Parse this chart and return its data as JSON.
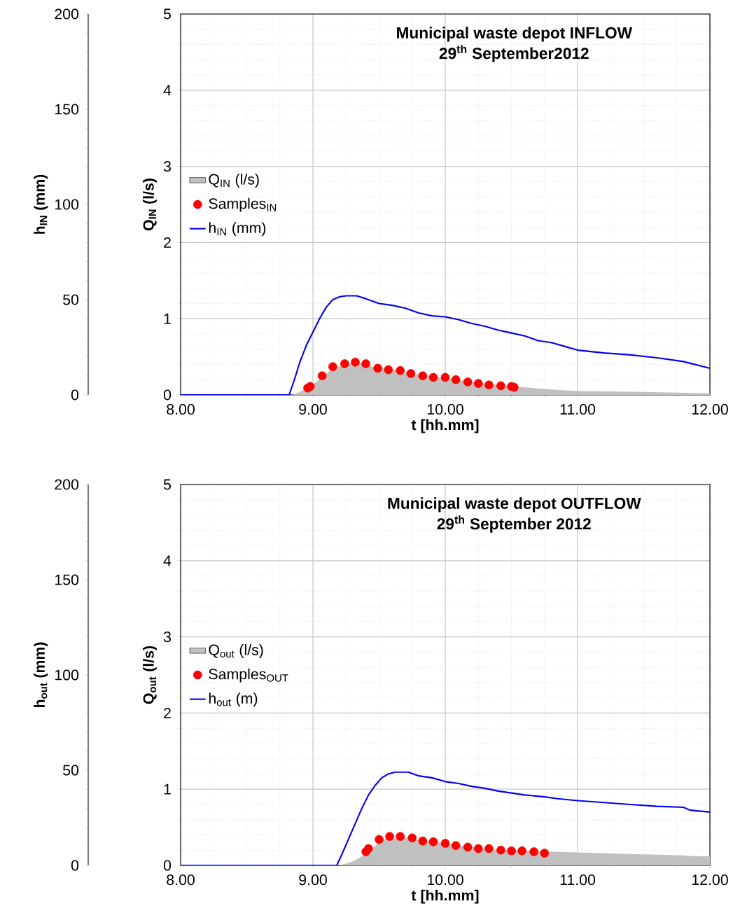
{
  "chart_data": [
    {
      "type": "area",
      "title": "Municipal waste depot INFLOW",
      "subtitle": "29$^{th}$ September2012",
      "xlabel": "t [hh.mm]",
      "ylabel": "Q$_{IN}$ (l/s)",
      "y2label": "h$_{IN}$ (mm)",
      "xlim": [
        8,
        12
      ],
      "xticks": [
        {
          "value": 8,
          "label": "8.00"
        },
        {
          "value": 9,
          "label": "9.00"
        },
        {
          "value": 10,
          "label": "10.00"
        },
        {
          "value": 11,
          "label": "11.00"
        },
        {
          "value": 12,
          "label": "12.00"
        }
      ],
      "ylim": [
        0,
        5
      ],
      "yticks": [
        0,
        1,
        2,
        3,
        4,
        5
      ],
      "y2lim": [
        0,
        200
      ],
      "y2ticks": [
        0,
        50,
        100,
        150,
        200
      ],
      "grid": true,
      "legend": "left",
      "series": [
        {
          "name": "Q$_{IN}$ (l/s)",
          "color": "#c0c0c0",
          "x": [
            8.0,
            8.85,
            8.95,
            9.05,
            9.15,
            9.25,
            9.35,
            9.45,
            9.6,
            9.75,
            9.9,
            10.0,
            10.2,
            10.4,
            10.5,
            10.6,
            10.8,
            11.0,
            11.5,
            12.0
          ],
          "values": [
            0,
            0,
            0.08,
            0.2,
            0.35,
            0.4,
            0.42,
            0.37,
            0.33,
            0.28,
            0.24,
            0.22,
            0.17,
            0.13,
            0.11,
            0.1,
            0.07,
            0.05,
            0.04,
            0.02
          ]
        },
        {
          "name": "Samples$_{IN}$",
          "type": "scatter",
          "color": "#ff0000",
          "marker": "circle",
          "x": [
            8.96,
            8.98,
            9.07,
            9.15,
            9.24,
            9.32,
            9.4,
            9.49,
            9.57,
            9.66,
            9.74,
            9.83,
            9.91,
            10.0,
            10.08,
            10.17,
            10.25,
            10.33,
            10.42,
            10.5,
            10.52
          ],
          "values": [
            0.09,
            0.11,
            0.25,
            0.37,
            0.41,
            0.43,
            0.41,
            0.35,
            0.33,
            0.32,
            0.28,
            0.25,
            0.23,
            0.23,
            0.2,
            0.17,
            0.15,
            0.13,
            0.12,
            0.11,
            0.1
          ]
        },
        {
          "name": "h$_{IN}$ (mm)",
          "type": "line",
          "color": "#0000ff",
          "axis": "y2",
          "x": [
            8.0,
            8.82,
            8.86,
            8.9,
            8.95,
            9.0,
            9.05,
            9.1,
            9.15,
            9.2,
            9.25,
            9.33,
            9.4,
            9.5,
            9.6,
            9.7,
            9.8,
            9.9,
            10.0,
            10.1,
            10.2,
            10.3,
            10.4,
            10.5,
            10.6,
            10.7,
            10.8,
            10.9,
            11.0,
            11.2,
            11.4,
            11.6,
            11.8,
            12.0
          ],
          "values": [
            0,
            0,
            8,
            17,
            26,
            33,
            40,
            46,
            50,
            51.5,
            52,
            52,
            50.5,
            48,
            47,
            45.5,
            43,
            41.5,
            41,
            39.5,
            37.5,
            36,
            34,
            32.5,
            31,
            28.5,
            27.5,
            25.5,
            23.5,
            22,
            21,
            19.5,
            17.5,
            14
          ]
        }
      ]
    },
    {
      "type": "area",
      "title": "Municipal waste depot OUTFLOW",
      "subtitle": "29$^{th}$ September 2012",
      "xlabel": "t [hh.mm]",
      "ylabel": "Q$_{out}$ (l/s)",
      "y2label": "h$_{out}$ (mm)",
      "xlim": [
        8,
        12
      ],
      "xticks": [
        {
          "value": 8,
          "label": "8.00"
        },
        {
          "value": 9,
          "label": "9.00"
        },
        {
          "value": 10,
          "label": "10.00"
        },
        {
          "value": 11,
          "label": "11.00"
        },
        {
          "value": 12,
          "label": "12.00"
        }
      ],
      "ylim": [
        0,
        5
      ],
      "yticks": [
        0,
        1,
        2,
        3,
        4,
        5
      ],
      "y2lim": [
        0,
        200
      ],
      "y2ticks": [
        0,
        50,
        100,
        150,
        200
      ],
      "grid": true,
      "legend": "left",
      "series": [
        {
          "name": "Q$_{out}$ (l/s)",
          "color": "#c0c0c0",
          "x": [
            8.0,
            9.2,
            9.3,
            9.4,
            9.5,
            9.55,
            9.7,
            9.8,
            9.9,
            10.0,
            10.2,
            10.4,
            10.6,
            10.8,
            11.0,
            11.2,
            11.4,
            11.6,
            11.8,
            11.9,
            12.0
          ],
          "values": [
            0,
            0,
            0.05,
            0.15,
            0.3,
            0.35,
            0.36,
            0.33,
            0.31,
            0.29,
            0.24,
            0.2,
            0.19,
            0.18,
            0.17,
            0.16,
            0.15,
            0.14,
            0.13,
            0.12,
            0.12
          ]
        },
        {
          "name": "Samples$_{OUT}$",
          "type": "scatter",
          "color": "#ff0000",
          "marker": "circle",
          "x": [
            9.4,
            9.42,
            9.5,
            9.58,
            9.66,
            9.75,
            9.83,
            9.91,
            10.0,
            10.08,
            10.17,
            10.25,
            10.33,
            10.42,
            10.5,
            10.58,
            10.67,
            10.75
          ],
          "values": [
            0.18,
            0.22,
            0.34,
            0.38,
            0.38,
            0.36,
            0.32,
            0.31,
            0.29,
            0.26,
            0.24,
            0.22,
            0.22,
            0.2,
            0.19,
            0.19,
            0.18,
            0.16
          ]
        },
        {
          "name": "h$_{out}$ (m)",
          "type": "line",
          "color": "#0000ff",
          "axis": "y2",
          "x": [
            8.0,
            9.18,
            9.22,
            9.27,
            9.32,
            9.37,
            9.42,
            9.47,
            9.52,
            9.57,
            9.62,
            9.72,
            9.8,
            9.9,
            10.0,
            10.1,
            10.2,
            10.3,
            10.4,
            10.5,
            10.6,
            10.75,
            10.85,
            11.0,
            11.2,
            11.4,
            11.6,
            11.8,
            11.85,
            12.0
          ],
          "values": [
            0,
            0,
            6,
            14,
            22,
            30,
            37,
            42,
            46,
            48,
            49,
            49,
            47,
            46,
            44,
            43,
            41.5,
            40.5,
            39,
            38,
            37,
            36,
            35,
            34,
            33,
            32,
            31,
            30.5,
            29,
            28
          ]
        }
      ]
    }
  ]
}
